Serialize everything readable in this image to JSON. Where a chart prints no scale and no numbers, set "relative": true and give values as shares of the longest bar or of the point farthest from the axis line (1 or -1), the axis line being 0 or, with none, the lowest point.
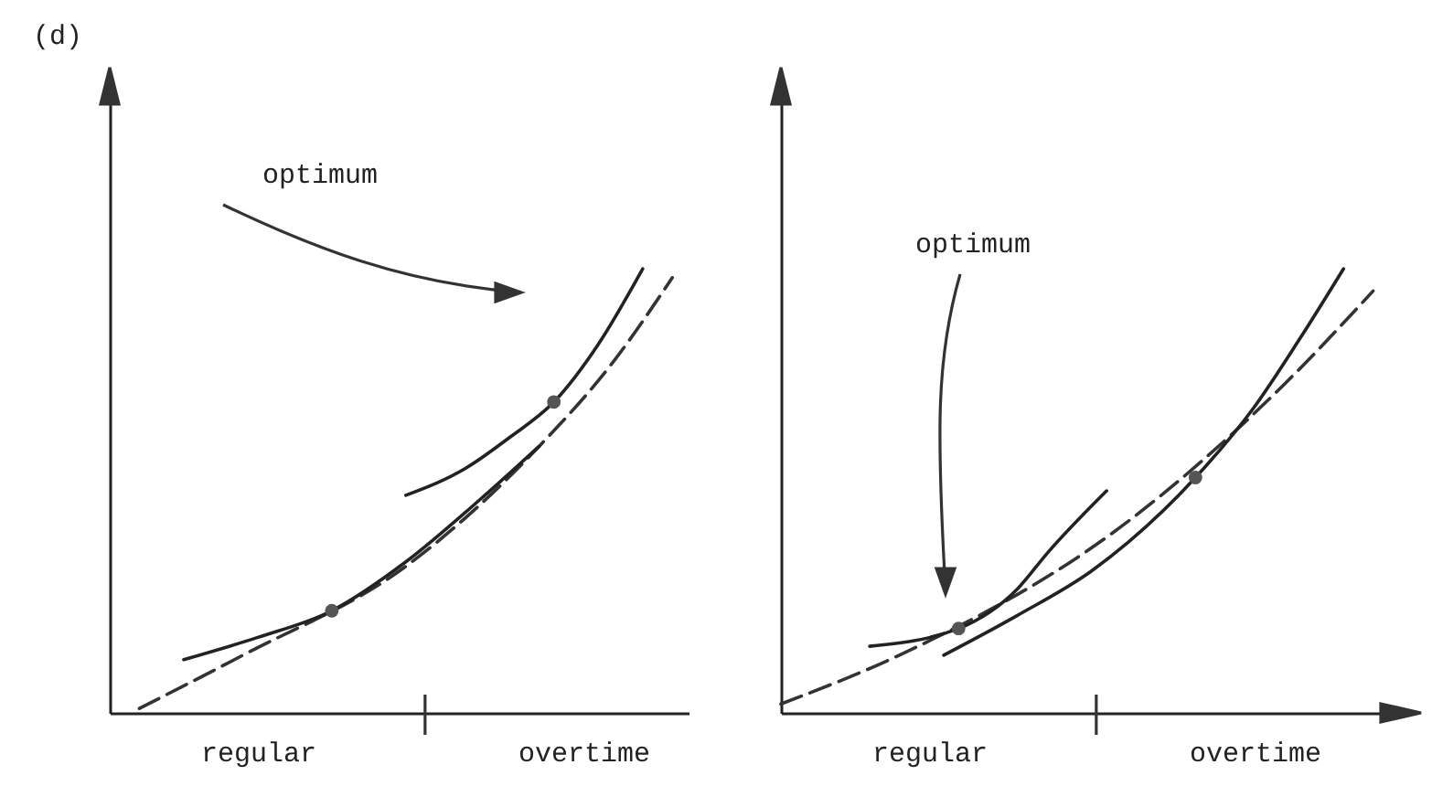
{
  "chart_data": [
    {
      "type": "line",
      "title": "(d)",
      "relative": true,
      "annotations": [
        "optimum"
      ],
      "categories": [
        null,
        null,
        null,
        null,
        null,
        null,
        null,
        null,
        null,
        null,
        "regular",
        null,
        null,
        null,
        null,
        null,
        null,
        null,
        null,
        null,
        null,
        null,
        null,
        null,
        null,
        null,
        null,
        null,
        null,
        null,
        null,
        null,
        "overtime",
        null,
        null,
        null,
        null,
        null,
        null,
        null,
        null,
        null,
        null
      ],
      "series": [
        {
          "line_style": "dashed",
          "color": "#333333",
          "values": [
            null,
            null,
            0.01,
            null,
            null,
            null,
            null,
            null,
            null,
            0.13,
            null,
            null,
            null,
            null,
            null,
            null,
            null,
            null,
            null,
            null,
            0.33,
            null,
            null,
            null,
            null,
            null,
            null,
            null,
            null,
            0.6,
            null,
            null,
            null,
            null,
            0.79,
            null,
            null,
            null,
            0.98,
            null,
            null,
            null,
            null
          ]
        },
        {
          "color": "#222222",
          "values": [
            null,
            null,
            null,
            null,
            null,
            0.12,
            null,
            null,
            null,
            null,
            0.17,
            null,
            null,
            null,
            null,
            0.23,
            null,
            null,
            null,
            null,
            0.34,
            null,
            null,
            null,
            null,
            0.48,
            null,
            null,
            null,
            0.6,
            null,
            null,
            null,
            null,
            null,
            null,
            null,
            null,
            null,
            null,
            null,
            null,
            null
          ]
        },
        {
          "color": "#222222",
          "values": [
            null,
            null,
            null,
            null,
            null,
            null,
            null,
            null,
            null,
            null,
            null,
            null,
            null,
            null,
            null,
            null,
            null,
            null,
            null,
            null,
            0.49,
            null,
            null,
            null,
            0.55,
            null,
            null,
            0.62,
            null,
            null,
            0.7,
            null,
            null,
            0.83,
            null,
            null,
            1,
            null,
            null,
            null,
            null,
            null,
            null
          ]
        },
        {
          "type": "scatter",
          "marker": "circle",
          "color": "#555555",
          "values": [
            null,
            null,
            null,
            null,
            null,
            null,
            null,
            null,
            null,
            null,
            null,
            null,
            null,
            null,
            null,
            0.23,
            null,
            null,
            null,
            null,
            null,
            null,
            null,
            null,
            null,
            null,
            null,
            null,
            null,
            null,
            0.7,
            null,
            null,
            null,
            null,
            null,
            null,
            null,
            null,
            null,
            null,
            null,
            null
          ]
        }
      ]
    },
    {
      "type": "line",
      "relative": true,
      "annotations": [
        "optimum"
      ],
      "categories": [
        null,
        null,
        null,
        null,
        null,
        null,
        null,
        null,
        null,
        null,
        "regular",
        null,
        null,
        null,
        null,
        null,
        null,
        null,
        null,
        null,
        null,
        null,
        null,
        null,
        null,
        null,
        null,
        null,
        null,
        null,
        null,
        null,
        "overtime",
        null,
        null,
        null,
        null,
        null,
        null,
        null,
        null,
        null,
        null
      ],
      "series": [
        {
          "line_style": "dashed",
          "color": "#333333",
          "values": [
            0.02,
            null,
            null,
            null,
            null,
            null,
            null,
            null,
            0.13,
            null,
            null,
            null,
            null,
            null,
            null,
            null,
            null,
            null,
            null,
            null,
            null,
            null,
            null,
            0.42,
            null,
            null,
            null,
            null,
            null,
            null,
            null,
            null,
            null,
            null,
            0.74,
            null,
            null,
            null,
            null,
            null,
            0.95,
            null,
            null
          ]
        },
        {
          "color": "#222222",
          "values": [
            null,
            null,
            null,
            null,
            null,
            null,
            0.15,
            null,
            null,
            null,
            null,
            null,
            0.19,
            null,
            null,
            null,
            0.28,
            null,
            0.36,
            null,
            null,
            null,
            0.5,
            null,
            null,
            null,
            null,
            null,
            null,
            null,
            null,
            null,
            null,
            null,
            null,
            null,
            null,
            null,
            null,
            null,
            null,
            null,
            null
          ]
        },
        {
          "color": "#222222",
          "values": [
            null,
            null,
            null,
            null,
            null,
            null,
            null,
            null,
            null,
            null,
            null,
            0.13,
            null,
            null,
            null,
            null,
            0.22,
            null,
            null,
            null,
            null,
            0.32,
            null,
            null,
            null,
            null,
            null,
            null,
            0.53,
            null,
            null,
            null,
            0.69,
            null,
            null,
            0.84,
            null,
            null,
            1,
            null,
            null,
            null,
            null
          ]
        },
        {
          "type": "scatter",
          "marker": "circle",
          "color": "#555555",
          "values": [
            null,
            null,
            null,
            null,
            null,
            null,
            null,
            null,
            null,
            null,
            null,
            null,
            0.19,
            null,
            null,
            null,
            null,
            null,
            null,
            null,
            null,
            null,
            null,
            null,
            null,
            null,
            null,
            null,
            0.53,
            null,
            null,
            null,
            null,
            null,
            null,
            null,
            null,
            null,
            null,
            null,
            null,
            null,
            null
          ]
        }
      ]
    }
  ]
}
